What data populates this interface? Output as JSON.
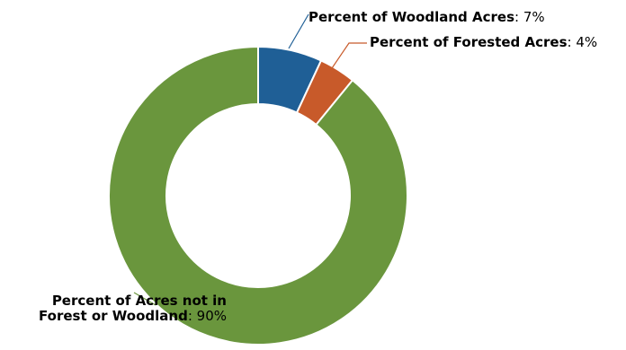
{
  "chart_data": {
    "type": "pie",
    "variant": "donut",
    "title": "",
    "slices": [
      {
        "label": "Percent of Woodland Acres",
        "value": 7,
        "value_text": "7%",
        "color": "#1f5f96"
      },
      {
        "label": "Percent of Forested Acres",
        "value": 4,
        "value_text": "4%",
        "color": "#c85a2a"
      },
      {
        "label": "Percent of Acres not in Forest or Woodland",
        "label_lines": [
          "Percent of Acres not in",
          "Forest or Woodland"
        ],
        "value": 90,
        "value_text": "90%",
        "color": "#6a963d"
      }
    ],
    "separator": ": ",
    "legend": "none",
    "slice_border_color": "#ffffff"
  }
}
